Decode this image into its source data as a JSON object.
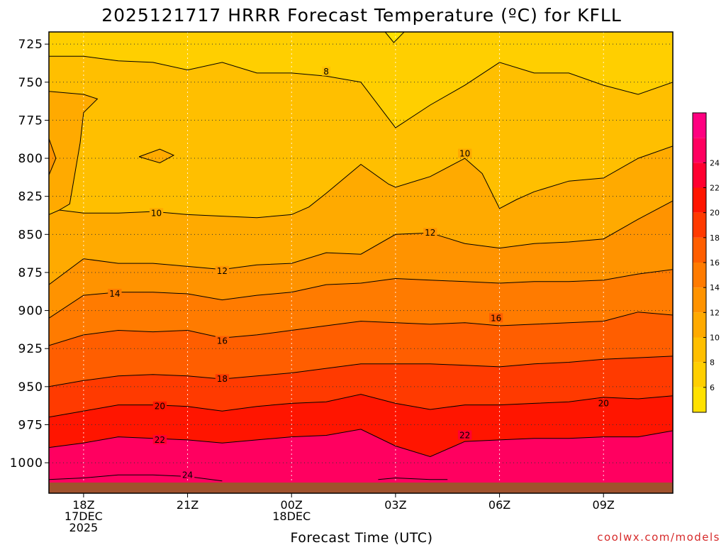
{
  "title": "2025121717 HRRR Forecast Temperature (ºC) for KFLL",
  "credit": "coolwx.com/models",
  "chart_data": {
    "type": "heatmap",
    "title": "2025121717 HRRR Forecast Temperature (ºC) for KFLL",
    "xlabel": "Forecast Time (UTC)",
    "ylabel": "",
    "x_range_hours": [
      17,
      35
    ],
    "y_range_hpa": [
      1020,
      717
    ],
    "y_scale": "inverted",
    "grid": true,
    "legend_position": "right",
    "yticks": [
      {
        "value": 725,
        "label": "725"
      },
      {
        "value": 750,
        "label": "750"
      },
      {
        "value": 775,
        "label": "775"
      },
      {
        "value": 800,
        "label": "800"
      },
      {
        "value": 825,
        "label": "825"
      },
      {
        "value": 850,
        "label": "850"
      },
      {
        "value": 875,
        "label": "875"
      },
      {
        "value": 900,
        "label": "900"
      },
      {
        "value": 925,
        "label": "925"
      },
      {
        "value": 950,
        "label": "950"
      },
      {
        "value": 975,
        "label": "975"
      },
      {
        "value": 1000,
        "label": "1000"
      }
    ],
    "xticks": [
      {
        "value": 18,
        "lines": [
          "18Z",
          "17DEC",
          "2025"
        ]
      },
      {
        "value": 21,
        "lines": [
          "21Z"
        ]
      },
      {
        "value": 24,
        "lines": [
          "00Z",
          "18DEC"
        ]
      },
      {
        "value": 27,
        "lines": [
          "03Z"
        ]
      },
      {
        "value": 30,
        "lines": [
          "06Z"
        ]
      },
      {
        "value": 33,
        "lines": [
          "09Z"
        ]
      }
    ],
    "colorbar": [
      {
        "value": 4,
        "color": "#ffe100"
      },
      {
        "value": 6,
        "color": "#ffcf00"
      },
      {
        "value": 8,
        "color": "#ffbf00"
      },
      {
        "value": 10,
        "color": "#ffaa00"
      },
      {
        "value": 12,
        "color": "#ff9300"
      },
      {
        "value": 14,
        "color": "#ff7b00"
      },
      {
        "value": 16,
        "color": "#ff5e00"
      },
      {
        "value": 18,
        "color": "#ff3a00"
      },
      {
        "value": 20,
        "color": "#ff1500"
      },
      {
        "value": 22,
        "color": "#ff0030"
      },
      {
        "value": 24,
        "color": "#ff0060"
      },
      {
        "value": 26,
        "color": "#ff0080"
      }
    ],
    "colorbar_labels": [
      "6",
      "8",
      "10",
      "12",
      "14",
      "16",
      "18",
      "20",
      "22",
      "24"
    ],
    "surface_color": "#a0522d",
    "surface_pressure_hpa": 1013,
    "isotherms": [
      {
        "value": 6,
        "points": [
          [
            26.7,
            717
          ],
          [
            26.95,
            724
          ],
          [
            27.25,
            717
          ]
        ]
      },
      {
        "value": 8,
        "points": [
          [
            17,
            733
          ],
          [
            18,
            733
          ],
          [
            19,
            736
          ],
          [
            20,
            737
          ],
          [
            21,
            742
          ],
          [
            22,
            737
          ],
          [
            23,
            744
          ],
          [
            24,
            744
          ],
          [
            25,
            746
          ],
          [
            26,
            750
          ],
          [
            27,
            780
          ],
          [
            28,
            765
          ],
          [
            29,
            752
          ],
          [
            30,
            737
          ],
          [
            31,
            744
          ],
          [
            32,
            744
          ],
          [
            33,
            752
          ],
          [
            34,
            758
          ],
          [
            35,
            750
          ]
        ],
        "labels": [
          [
            25,
            743
          ]
        ]
      },
      {
        "value": 8,
        "points": [
          [
            17,
            756
          ],
          [
            18,
            758
          ],
          [
            18.4,
            761
          ],
          [
            18,
            770
          ],
          [
            17.9,
            790
          ],
          [
            17.6,
            830
          ],
          [
            17.3,
            834
          ]
        ]
      },
      {
        "value": 10,
        "points": [
          [
            17,
            837
          ],
          [
            17.3,
            834
          ],
          [
            18,
            836
          ],
          [
            19,
            836
          ],
          [
            20,
            835
          ],
          [
            21,
            837
          ],
          [
            22,
            838
          ],
          [
            23,
            839
          ],
          [
            24,
            837
          ],
          [
            24.5,
            832
          ],
          [
            25,
            823
          ],
          [
            26,
            804
          ],
          [
            26.8,
            817
          ],
          [
            27,
            819
          ],
          [
            28,
            812
          ],
          [
            29,
            800
          ],
          [
            29.5,
            810
          ],
          [
            30,
            833
          ],
          [
            30.5,
            827
          ],
          [
            31,
            822
          ],
          [
            32,
            815
          ],
          [
            33,
            813
          ],
          [
            34,
            800
          ],
          [
            35,
            792
          ]
        ],
        "labels": [
          [
            20.1,
            836
          ],
          [
            29,
            797
          ]
        ]
      },
      {
        "value": 10,
        "points": [
          [
            17,
            787
          ],
          [
            17.2,
            800
          ],
          [
            17,
            811
          ]
        ]
      },
      {
        "value": 10,
        "points": [
          [
            19.6,
            799
          ],
          [
            20.2,
            794
          ],
          [
            20.6,
            798
          ],
          [
            20.2,
            803
          ],
          [
            19.6,
            799
          ]
        ]
      },
      {
        "value": 12,
        "points": [
          [
            17,
            883
          ],
          [
            18,
            866
          ],
          [
            19,
            869
          ],
          [
            20,
            869
          ],
          [
            21,
            871
          ],
          [
            22,
            873
          ],
          [
            23,
            870
          ],
          [
            24,
            869
          ],
          [
            25,
            862
          ],
          [
            26,
            863
          ],
          [
            27,
            850
          ],
          [
            28,
            849
          ],
          [
            29,
            856
          ],
          [
            30,
            859
          ],
          [
            31,
            856
          ],
          [
            32,
            855
          ],
          [
            33,
            853
          ],
          [
            34,
            840
          ],
          [
            35,
            828
          ]
        ],
        "labels": [
          [
            22,
            874
          ],
          [
            28,
            849
          ]
        ]
      },
      {
        "value": 14,
        "points": [
          [
            17,
            905
          ],
          [
            18,
            890
          ],
          [
            19,
            888
          ],
          [
            20,
            888
          ],
          [
            21,
            889
          ],
          [
            22,
            893
          ],
          [
            23,
            890
          ],
          [
            24,
            888
          ],
          [
            25,
            883
          ],
          [
            26,
            882
          ],
          [
            27,
            879
          ],
          [
            28,
            880
          ],
          [
            29,
            881
          ],
          [
            30,
            882
          ],
          [
            31,
            881
          ],
          [
            32,
            881
          ],
          [
            33,
            880
          ],
          [
            34,
            876
          ],
          [
            35,
            873
          ]
        ],
        "labels": [
          [
            18.9,
            889
          ]
        ]
      },
      {
        "value": 16,
        "points": [
          [
            17,
            923
          ],
          [
            18,
            916
          ],
          [
            19,
            913
          ],
          [
            20,
            914
          ],
          [
            21,
            913
          ],
          [
            22,
            918
          ],
          [
            23,
            916
          ],
          [
            24,
            913
          ],
          [
            25,
            910
          ],
          [
            26,
            907
          ],
          [
            27,
            908
          ],
          [
            28,
            909
          ],
          [
            29,
            908
          ],
          [
            30,
            910
          ],
          [
            31,
            909
          ],
          [
            32,
            908
          ],
          [
            33,
            907
          ],
          [
            34,
            901
          ],
          [
            35,
            903
          ]
        ],
        "labels": [
          [
            22,
            920
          ],
          [
            29.9,
            905
          ]
        ]
      },
      {
        "value": 18,
        "points": [
          [
            17,
            950
          ],
          [
            18,
            946
          ],
          [
            19,
            943
          ],
          [
            20,
            942
          ],
          [
            21,
            943
          ],
          [
            22,
            945
          ],
          [
            23,
            943
          ],
          [
            24,
            941
          ],
          [
            25,
            938
          ],
          [
            26,
            935
          ],
          [
            27,
            935
          ],
          [
            28,
            935
          ],
          [
            29,
            936
          ],
          [
            30,
            937
          ],
          [
            31,
            935
          ],
          [
            32,
            934
          ],
          [
            33,
            932
          ],
          [
            34,
            931
          ],
          [
            35,
            930
          ]
        ],
        "labels": [
          [
            22,
            945
          ]
        ]
      },
      {
        "value": 20,
        "points": [
          [
            17,
            970
          ],
          [
            18,
            966
          ],
          [
            19,
            962
          ],
          [
            20,
            962
          ],
          [
            21,
            963
          ],
          [
            22,
            966
          ],
          [
            23,
            963
          ],
          [
            24,
            961
          ],
          [
            25,
            960
          ],
          [
            26,
            955
          ],
          [
            27,
            961
          ],
          [
            28,
            965
          ],
          [
            29,
            962
          ],
          [
            30,
            962
          ],
          [
            31,
            961
          ],
          [
            32,
            960
          ],
          [
            33,
            957
          ],
          [
            34,
            958
          ],
          [
            35,
            956
          ]
        ],
        "labels": [
          [
            20.2,
            963
          ],
          [
            33,
            961
          ]
        ]
      },
      {
        "value": 22,
        "points": [
          [
            17,
            990
          ],
          [
            18,
            987
          ],
          [
            19,
            983
          ],
          [
            20,
            984
          ],
          [
            21,
            985
          ],
          [
            22,
            987
          ],
          [
            23,
            985
          ],
          [
            24,
            983
          ],
          [
            25,
            982
          ],
          [
            26,
            978
          ],
          [
            27,
            989
          ],
          [
            28,
            996
          ],
          [
            29,
            986
          ],
          [
            30,
            985
          ],
          [
            31,
            984
          ],
          [
            32,
            984
          ],
          [
            33,
            983
          ],
          [
            34,
            983
          ],
          [
            35,
            979
          ]
        ],
        "labels": [
          [
            20.2,
            985
          ],
          [
            29,
            982
          ]
        ]
      },
      {
        "value": 24,
        "points": [
          [
            17,
            1011
          ],
          [
            18,
            1010
          ],
          [
            19,
            1008
          ],
          [
            20,
            1008
          ],
          [
            21,
            1009
          ],
          [
            22,
            1012
          ]
        ],
        "labels": [
          [
            21,
            1008
          ]
        ]
      },
      {
        "value": 24,
        "points": [
          [
            26.5,
            1011
          ],
          [
            27,
            1010
          ],
          [
            28,
            1011
          ],
          [
            28.5,
            1011
          ]
        ]
      }
    ]
  }
}
